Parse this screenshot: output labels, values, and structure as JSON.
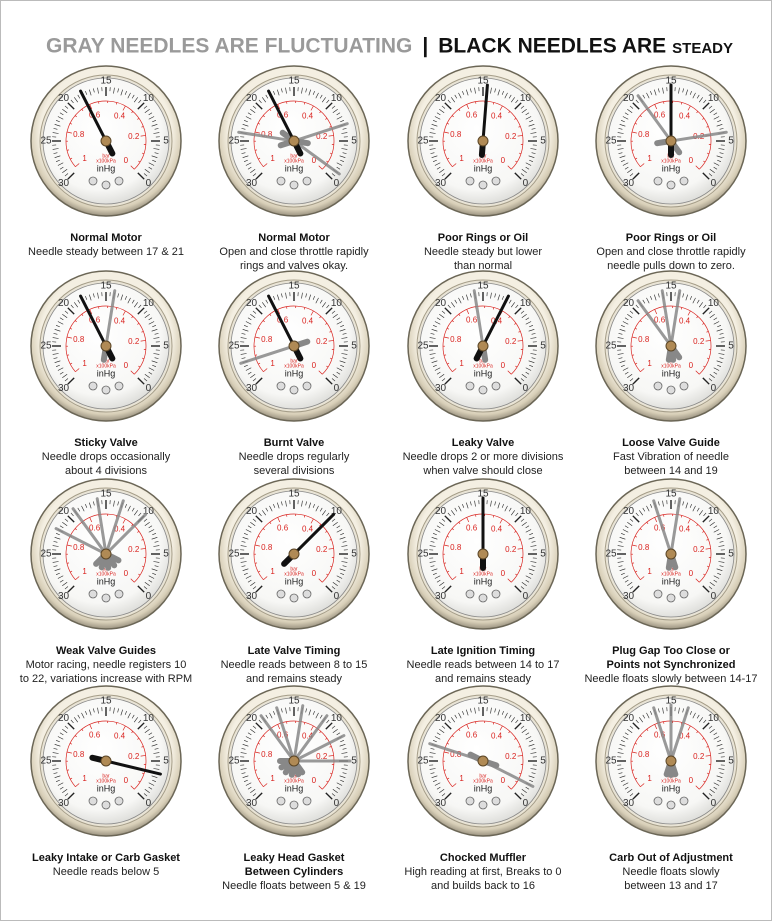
{
  "header": {
    "gray": "GRAY NEEDLES ARE FLUCTUATING",
    "divider": "|",
    "black": "BLACK NEEDLES ARE",
    "black_small": "STEADY"
  },
  "dial": {
    "inhg_labels": [
      "0",
      "5",
      "10",
      "15",
      "20",
      "25",
      "30"
    ],
    "bar_labels": [
      "0",
      "0.2",
      "0.4",
      "0.6",
      "0.8",
      "1"
    ],
    "unit_bar": "bar",
    "unit_kpa": "x100kPa",
    "unit": "inHg"
  },
  "gauges": [
    {
      "title": [
        "Normal Motor"
      ],
      "lines": [
        "Needle steady between 17 & 21"
      ]
    },
    {
      "title": [
        "Normal Motor"
      ],
      "lines": [
        "Open and close throttle rapidly",
        "rings and valves okay."
      ]
    },
    {
      "title": [
        "Poor Rings or Oil"
      ],
      "lines": [
        "Needle steady but lower",
        "than normal"
      ]
    },
    {
      "title": [
        "Poor Rings or Oil"
      ],
      "lines": [
        "Open and close throttle rapidly",
        "needle pulls down to zero."
      ]
    },
    {
      "title": [
        "Sticky Valve"
      ],
      "lines": [
        "Needle drops occasionally",
        "about 4 divisions"
      ]
    },
    {
      "title": [
        "Burnt Valve"
      ],
      "lines": [
        "Needle drops regularly",
        "several divisions"
      ]
    },
    {
      "title": [
        "Leaky Valve"
      ],
      "lines": [
        "Needle drops 2 or more divisions",
        "when valve should close"
      ]
    },
    {
      "title": [
        "Loose Valve Guide"
      ],
      "lines": [
        "Fast Vibration of needle",
        "between 14 and 19"
      ]
    },
    {
      "title": [
        "Weak Valve Guides"
      ],
      "lines": [
        "Motor racing, needle registers 10",
        "to 22, variations increase with RPM"
      ]
    },
    {
      "title": [
        "Late Valve Timing"
      ],
      "lines": [
        "Needle reads between 8 to 15",
        "and remains steady"
      ]
    },
    {
      "title": [
        "Late Ignition Timing"
      ],
      "lines": [
        "Needle reads between 14 to 17",
        "and remains steady"
      ]
    },
    {
      "title": [
        "Plug Gap Too Close or",
        "Points not Synchronized"
      ],
      "lines": [
        "Needle floats slowly between 14-17"
      ]
    },
    {
      "title": [
        "Leaky Intake or Carb Gasket"
      ],
      "lines": [
        "Needle reads below 5"
      ]
    },
    {
      "title": [
        "Leaky Head Gasket",
        "Between Cylinders"
      ],
      "lines": [
        "Needle floats between 5 & 19"
      ]
    },
    {
      "title": [
        "Chocked Muffler"
      ],
      "lines": [
        "High reading at first, Breaks to 0",
        "and builds back to 16"
      ]
    },
    {
      "title": [
        "Carb Out of Adjustment"
      ],
      "lines": [
        "Needle floats slowly",
        "between 13 and 17"
      ]
    }
  ]
}
